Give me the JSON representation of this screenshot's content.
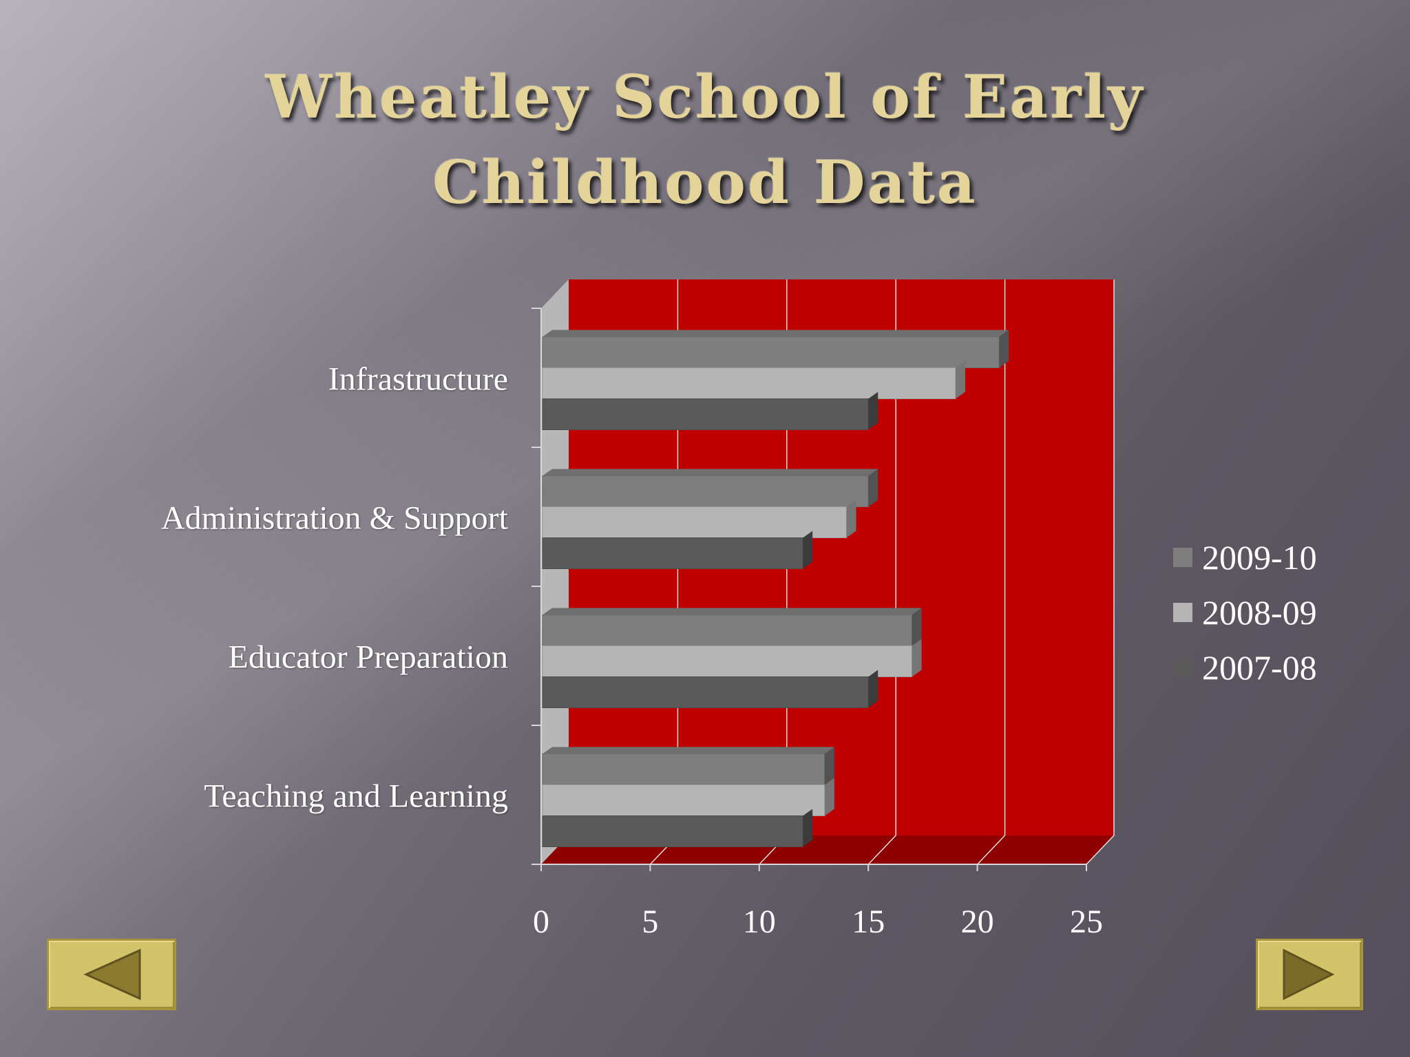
{
  "title_line1": "Wheatley School of Early",
  "title_line2": "Childhood Data",
  "colors": {
    "plot_background": "#c00000",
    "series": [
      "#7e7e7e",
      "#b5b5b5",
      "#5a5a5a"
    ]
  },
  "chart_data": {
    "type": "bar",
    "orientation": "horizontal",
    "three_d": true,
    "categories": [
      "Infrastructure",
      "Administration & Support",
      "Educator Preparation",
      "Teaching and Learning"
    ],
    "series": [
      {
        "name": "2009-10",
        "values": [
          21,
          15,
          17,
          13
        ]
      },
      {
        "name": "2008-09",
        "values": [
          19,
          14,
          17,
          13
        ]
      },
      {
        "name": "2007-08",
        "values": [
          15,
          12,
          15,
          12
        ]
      }
    ],
    "xlim": [
      0,
      25
    ],
    "xticks": [
      "0",
      "5",
      "10",
      "15",
      "20",
      "25"
    ],
    "grid": true,
    "legend_position": "right"
  },
  "navigation": {
    "prev_icon": "triangle-left-icon",
    "next_icon": "triangle-right-icon"
  }
}
